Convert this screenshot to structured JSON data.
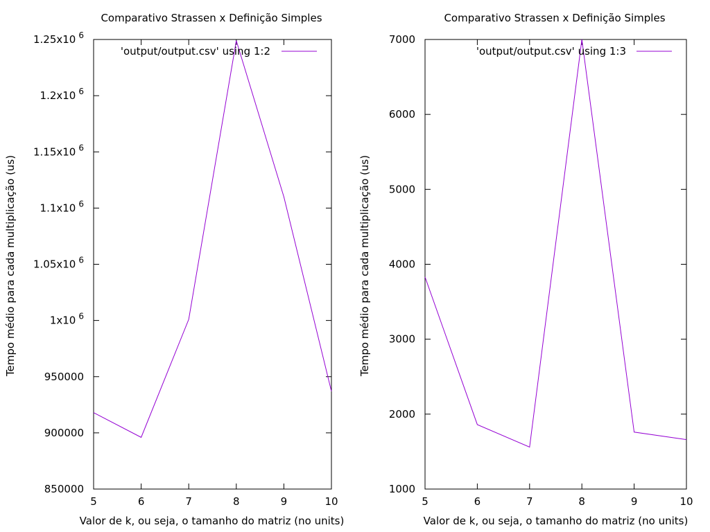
{
  "chart_data": [
    {
      "type": "line",
      "title": "Comparativo Strassen x Definição Simples",
      "xlabel": "Valor de k, ou seja, o tamanho do matriz (no units)",
      "ylabel": "Tempo médio para cada multiplicação (us)",
      "xlim": [
        5,
        10
      ],
      "ylim": [
        850000,
        1250000
      ],
      "x_ticks": [
        5,
        6,
        7,
        8,
        9,
        10
      ],
      "x_tick_labels": [
        "5",
        "6",
        "7",
        "8",
        "9",
        "10"
      ],
      "y_ticks": [
        850000,
        900000,
        950000,
        1000000,
        1050000,
        1100000,
        1150000,
        1200000,
        1250000
      ],
      "y_tick_labels": [
        {
          "base": "850000",
          "exp": ""
        },
        {
          "base": "900000",
          "exp": ""
        },
        {
          "base": "950000",
          "exp": ""
        },
        {
          "base": "1x10",
          "exp": "6"
        },
        {
          "base": "1.05x10",
          "exp": "6"
        },
        {
          "base": "1.1x10",
          "exp": "6"
        },
        {
          "base": "1.15x10",
          "exp": "6"
        },
        {
          "base": "1.2x10",
          "exp": "6"
        },
        {
          "base": "1.25x10",
          "exp": "6"
        }
      ],
      "grid": false,
      "legend_position": "top-right",
      "series": [
        {
          "name": "'output/output.csv' using 1:2",
          "color": "#9400d3",
          "x": [
            5,
            6,
            7,
            8,
            9,
            10
          ],
          "y": [
            918000,
            896000,
            1001000,
            1249000,
            1110000,
            937000
          ]
        }
      ]
    },
    {
      "type": "line",
      "title": "Comparativo Strassen x Definição Simples",
      "xlabel": "Valor de k, ou seja, o tamanho do matriz (no units)",
      "ylabel": "Tempo médio para cada multiplicação (us)",
      "xlim": [
        5,
        10
      ],
      "ylim": [
        1000,
        7000
      ],
      "x_ticks": [
        5,
        6,
        7,
        8,
        9,
        10
      ],
      "x_tick_labels": [
        "5",
        "6",
        "7",
        "8",
        "9",
        "10"
      ],
      "y_ticks": [
        1000,
        2000,
        3000,
        4000,
        5000,
        6000,
        7000
      ],
      "y_tick_labels": [
        {
          "base": "1000",
          "exp": ""
        },
        {
          "base": "2000",
          "exp": ""
        },
        {
          "base": "3000",
          "exp": ""
        },
        {
          "base": "4000",
          "exp": ""
        },
        {
          "base": "5000",
          "exp": ""
        },
        {
          "base": "6000",
          "exp": ""
        },
        {
          "base": "7000",
          "exp": ""
        }
      ],
      "grid": false,
      "legend_position": "top-right",
      "series": [
        {
          "name": "'output/output.csv' using 1:3",
          "color": "#9400d3",
          "x": [
            5,
            6,
            7,
            8,
            9,
            10
          ],
          "y": [
            3830,
            1860,
            1560,
            7000,
            1760,
            1660
          ]
        }
      ]
    }
  ]
}
